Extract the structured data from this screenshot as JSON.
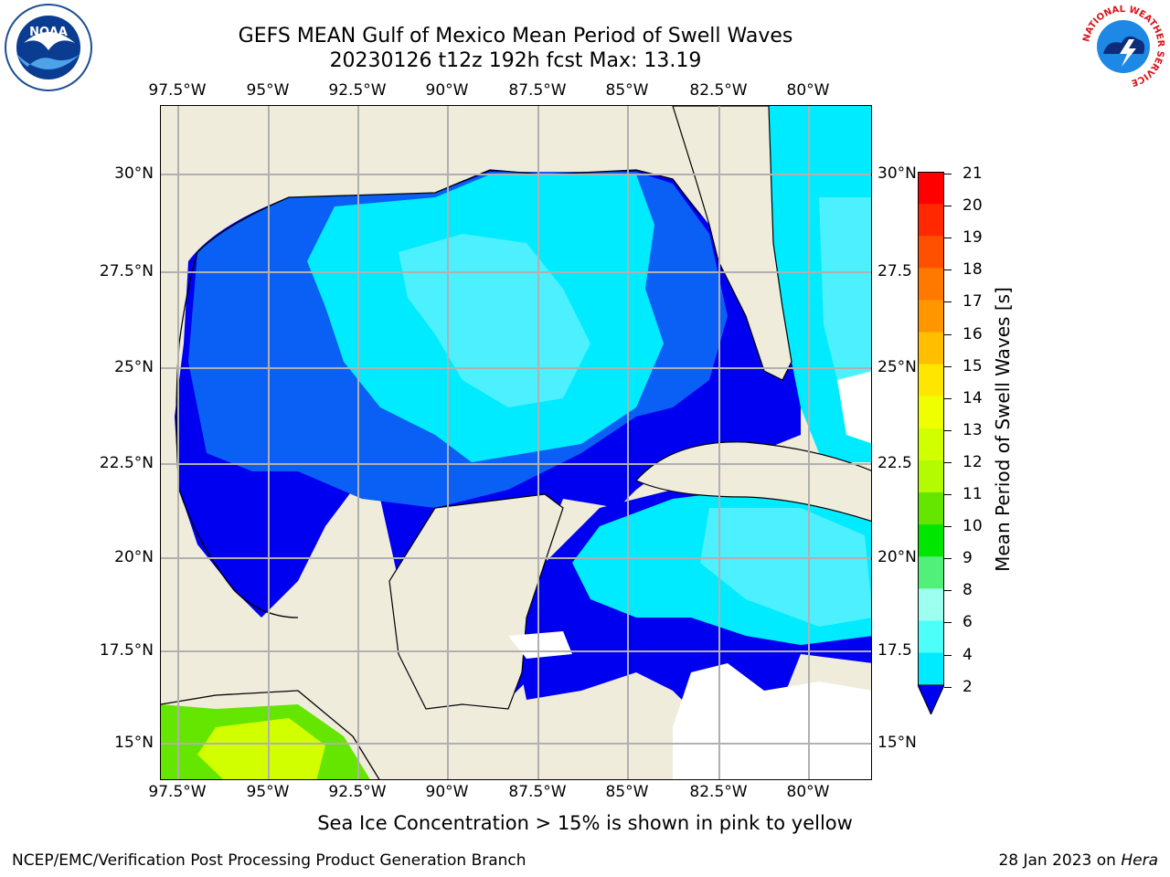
{
  "header": {
    "title_line1": "GEFS MEAN Gulf of Mexico Mean Period of Swell Waves",
    "title_line2": "20230126 t12z 192h fcst   Max: 13.19"
  },
  "map": {
    "region": "Gulf of Mexico",
    "lon_ticks": [
      "97.5°W",
      "95°W",
      "92.5°W",
      "90°W",
      "87.5°W",
      "85°W",
      "82.5°W",
      "80°W"
    ],
    "lat_ticks_left": [
      "30°N",
      "27.5°N",
      "25°N",
      "22.5°N",
      "20°N",
      "17.5°N",
      "15°N"
    ],
    "lat_ticks_right": [
      "30°N",
      "27.5",
      "25°N",
      "22.5",
      "20°N",
      "17.5",
      "15°N"
    ],
    "land_color": "#efecdc",
    "gridline_color": "#b0b0b0"
  },
  "colorbar": {
    "title": "Mean Period of Swell Waves [s]",
    "labels": [
      "21",
      "20",
      "19",
      "18",
      "17",
      "16",
      "15",
      "14",
      "13",
      "12",
      "11",
      "10",
      "9",
      "8",
      "6",
      "4",
      "2"
    ],
    "colors": [
      "#ff0000",
      "#ff2800",
      "#ff5000",
      "#ff7800",
      "#ff9600",
      "#ffbe00",
      "#ffe600",
      "#f0ff00",
      "#d2ff00",
      "#b4fa00",
      "#64e600",
      "#00e600",
      "#50f07a",
      "#9cfff0",
      "#4cfff8",
      "#00ebff",
      "#0078ff"
    ],
    "extend_color": "#0000f0"
  },
  "footer": {
    "note": "Sea Ice Concentration > 15% is shown in pink to yellow",
    "credit": "NCEP/EMC/Verification Post Processing Product Generation Branch",
    "date_prefix": "28 Jan 2023 on",
    "machine": "Hera"
  },
  "logos": {
    "left": "NOAA",
    "right_ring": "NATIONAL WEATHER SERVICE"
  }
}
